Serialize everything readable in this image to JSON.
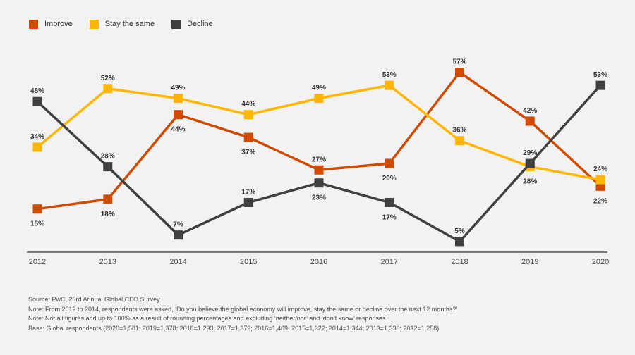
{
  "chart_data": {
    "type": "line",
    "title": "",
    "xlabel": "",
    "ylabel": "",
    "categories": [
      "2012",
      "2013",
      "2014",
      "2015",
      "2016",
      "2017",
      "2018",
      "2019",
      "2020"
    ],
    "series": [
      {
        "name": "Improve",
        "color": "#d04a02",
        "values": [
          15,
          18,
          44,
          37,
          27,
          29,
          57,
          42,
          22
        ],
        "label_positions": [
          "below",
          "below",
          "below",
          "below",
          "above",
          "below",
          "above",
          "above",
          "below"
        ]
      },
      {
        "name": "Stay the same",
        "color": "#ffb600",
        "values": [
          34,
          52,
          49,
          44,
          49,
          53,
          36,
          28,
          24
        ],
        "label_positions": [
          "above",
          "above",
          "above",
          "above",
          "above",
          "above",
          "above",
          "below",
          "above"
        ]
      },
      {
        "name": "Decline",
        "color": "#404040",
        "values": [
          48,
          28,
          7,
          17,
          23,
          17,
          5,
          29,
          53
        ],
        "label_positions": [
          "above",
          "above",
          "above",
          "above",
          "below",
          "below",
          "above",
          "above",
          "above"
        ]
      }
    ],
    "value_suffix": "%",
    "ylim": [
      0,
      60
    ],
    "grid": false,
    "legend_position": "top-left",
    "marker": "square",
    "label_color": "#2d2d2d",
    "axis_color": "#7a7a7a",
    "tick_label_color": "#4d4d4d",
    "background_color": "#f2f2f2"
  },
  "footer": {
    "lines": [
      "Source: PwC, 23rd Annual Global CEO Survey",
      "Note: From 2012 to 2014, respondents were asked, ‘Do you believe the global economy will improve, stay the same or decline over the next 12 months?’",
      "Note: Not all figures add up to 100% as a result of rounding percentages and excluding ‘neither/nor’ and ‘don’t know’ responses",
      "Base: Global respondents (2020=1,581; 2019=1,378; 2018=1,293; 2017=1,379; 2016=1,409; 2015=1,322; 2014=1,344; 2013=1,330; 2012=1,258)"
    ]
  }
}
